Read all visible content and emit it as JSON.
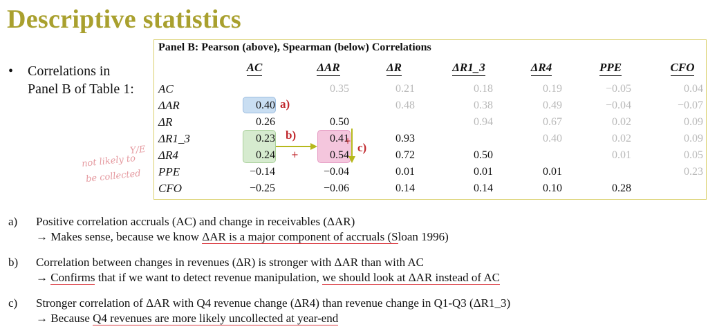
{
  "title": "Descriptive statistics",
  "bullet": {
    "symbol": "•",
    "line1": "Correlations in",
    "line2": "Panel B of Table 1:"
  },
  "panel": {
    "title": "Panel B: Pearson (above), Spearman (below) Correlations",
    "columns": [
      "AC",
      "ΔAR",
      "ΔR",
      "ΔR1_3",
      "ΔR4",
      "PPE",
      "CFO"
    ],
    "rows": [
      {
        "label": "AC",
        "cells": [
          "",
          "0.35",
          "0.21",
          "0.18",
          "0.19",
          "−0.05",
          "0.04"
        ]
      },
      {
        "label": "ΔAR",
        "cells": [
          "0.40",
          "",
          "0.48",
          "0.38",
          "0.49",
          "−0.04",
          "−0.07"
        ]
      },
      {
        "label": "ΔR",
        "cells": [
          "0.26",
          "0.50",
          "",
          "0.94",
          "0.67",
          "0.02",
          "0.09"
        ]
      },
      {
        "label": "ΔR1_3",
        "cells": [
          "0.23",
          "0.41",
          "0.93",
          "",
          "0.40",
          "0.02",
          "0.09"
        ]
      },
      {
        "label": "ΔR4",
        "cells": [
          "0.24",
          "0.54",
          "0.72",
          "0.50",
          "",
          "0.01",
          "0.05"
        ]
      },
      {
        "label": "PPE",
        "cells": [
          "−0.14",
          "−0.04",
          "0.01",
          "0.01",
          "0.01",
          "",
          "0.23"
        ]
      },
      {
        "label": "CFO",
        "cells": [
          "−0.25",
          "−0.06",
          "0.14",
          "0.14",
          "0.10",
          "0.28",
          ""
        ]
      }
    ],
    "marks": {
      "a": "a)",
      "b": "b)",
      "c": "c)"
    }
  },
  "handwriting": {
    "note1": "not likely to",
    "note2": "be collected",
    "note3": "Y/E"
  },
  "notes": [
    {
      "letter": "a)",
      "line1": "Positive correlation accruals (AC) and change in receivables (ΔAR)",
      "line2_pre": "→ Makes sense, because we know ",
      "line2_ul": "ΔAR is a major component of accruals (S",
      "line2_post": "loan 1996)"
    },
    {
      "letter": "b)",
      "line1": "Correlation between changes in revenues (ΔR) is stronger with ΔAR than with AC",
      "line2_pre": "→ ",
      "line2_ul1": "Confirms",
      "line2_mid": " that if we want to detect revenue manipulation, ",
      "line2_ul2": "we should look at ΔAR instead of AC",
      "line2_post": ""
    },
    {
      "letter": "c)",
      "line1": "Stronger correlation of ΔAR with Q4 revenue change (ΔR4) than revenue change in Q1-Q3 (ΔR1_3)",
      "line2_pre": "→ Because ",
      "line2_ul": "Q4 revenues are more likely uncollected at year-end",
      "line2_post": ""
    }
  ],
  "colors": {
    "title": "#a9a02e",
    "panel_border": "#d9cf6a",
    "mark_red": "#c0282d",
    "blue_hl": "#c9def2",
    "green_hl": "#d6ebcf",
    "pink_hl": "#f4c6dd",
    "arrow_green": "#b6b81c"
  }
}
